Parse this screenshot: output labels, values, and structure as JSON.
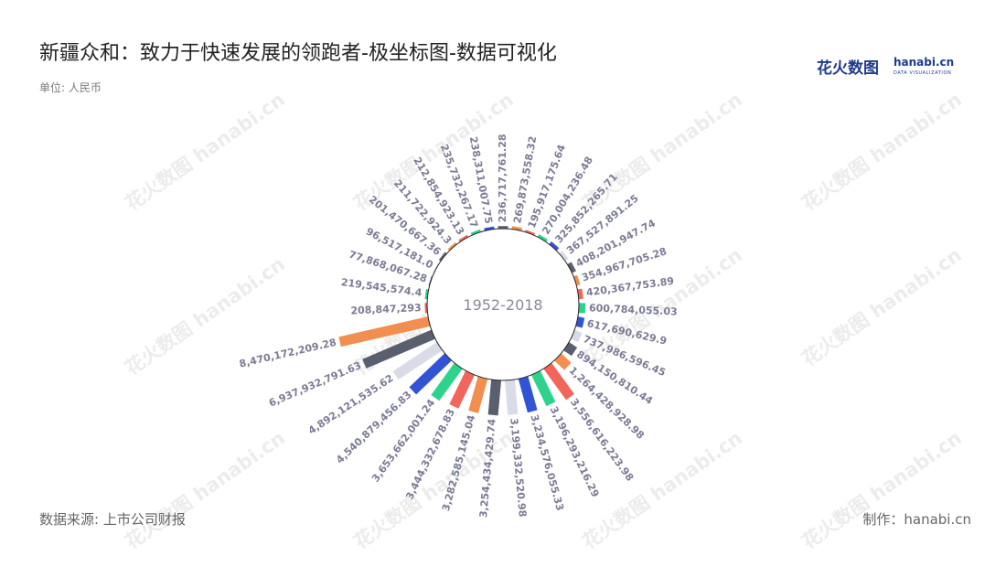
{
  "header": {
    "title": "新疆众和：致力于快速发展的领跑者-极坐标图-数据可视化",
    "unit": "单位: 人民币"
  },
  "footer": {
    "source": "数据来源: 上市公司财报",
    "credit": "制作：hanabi.cn"
  },
  "logo": {
    "text_cn": "花火数图",
    "text_en": "hanabi.cn",
    "tagline": "DATA VISUALIZATION"
  },
  "watermark": {
    "text": "花火数图 hanabi.cn"
  },
  "chart_data": {
    "type": "bar",
    "center_label": "1952-2018",
    "series": [
      {
        "values": [
          236717761.28,
          269873558.32,
          195917175.64,
          270004236.48,
          325852265.71,
          367527891.25,
          408201947.74,
          354967705.28,
          420367753.89,
          600784055.03,
          617690629.9,
          737986596.45,
          894150810.44,
          1264428928.98,
          3556616223.98,
          3196293216.29,
          3234576055.33,
          3199332520.98,
          3254434429.74,
          3282585145.04,
          3444332678.83,
          3653662001.24,
          4540879456.83,
          4892121535.62,
          6937932791.63,
          8470172209.28,
          208847293.0,
          219545574.4,
          77868067.28,
          96517181.0,
          201470667.36,
          211722924.3,
          212854923.13,
          235732267.17,
          238311007.75
        ],
        "labels": [
          "236,717,761.28",
          "269,873,558.32",
          "195,917,175.64",
          "270,004,236.48",
          "325,852,265.71",
          "367,527,891.25",
          "408,201,947.74",
          "354,967,705.28",
          "420,367,753.89",
          "600,784,055.03",
          "617,690,629.9",
          "737,986,596.45",
          "894,150,810.44",
          "1,264,428,928.98",
          "3,556,616,223.98",
          "3,196,293,216.29",
          "3,234,576,055.33",
          "3,199,332,520.98",
          "3,254,434,429.74",
          "3,282,585,145.04",
          "3,444,332,678.83",
          "3,653,662,001.24",
          "4,540,879,456.83",
          "4,892,121,535.62",
          "6,937,932,791.63",
          "8,470,172,209.28",
          "208,847,293",
          "219,545,574.4",
          "77,868,067.28",
          "96,517,181.0",
          "201,470,667.36",
          "211,722,924.3",
          "212,854,923.13",
          "235,732,267.17",
          "238,311,007.75"
        ]
      }
    ],
    "colors": [
      "#5a5f6e",
      "#f28e4f",
      "#f2655a",
      "#2dd38c",
      "#3154d6",
      "#d9dce6"
    ]
  }
}
